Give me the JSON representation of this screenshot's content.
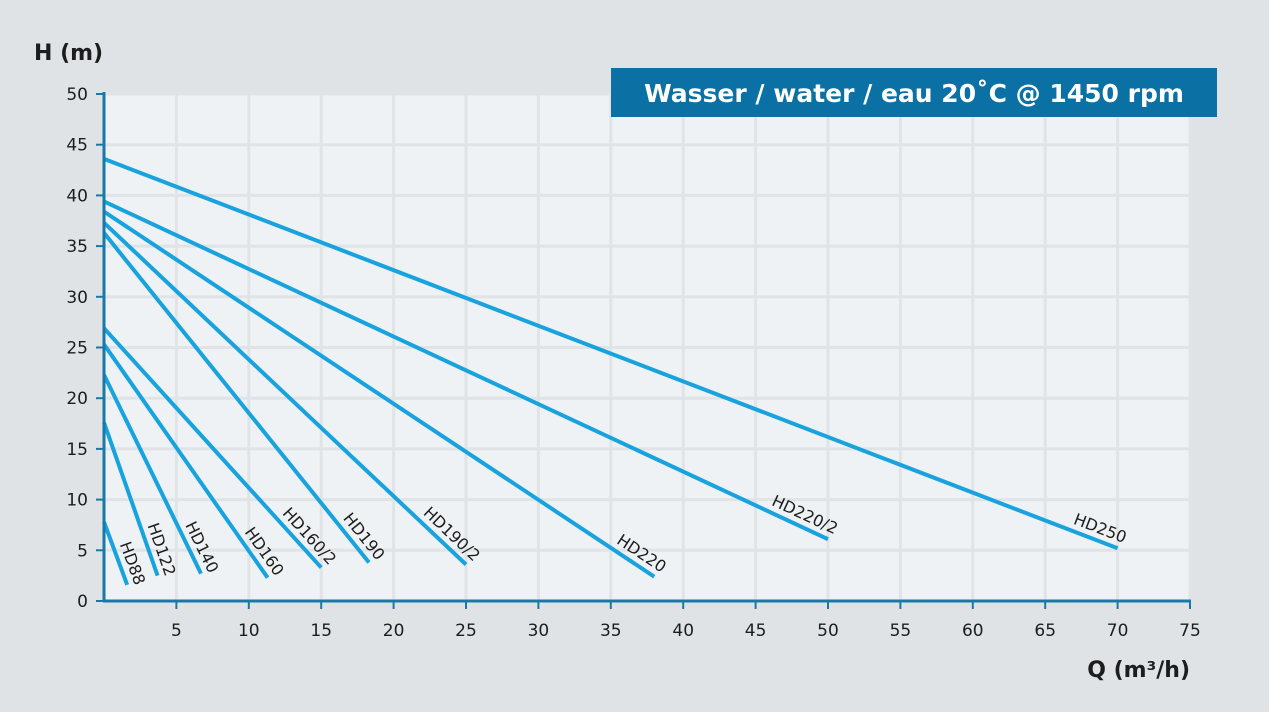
{
  "chart_data": {
    "type": "line",
    "title": "Wasser / water / eau 20˚C @ 1450 rpm",
    "xlabel": "Q (m³/h)",
    "ylabel": "H (m)",
    "xlim": [
      0,
      75
    ],
    "ylim": [
      0,
      50
    ],
    "x_ticks": [
      5,
      10,
      15,
      20,
      25,
      30,
      35,
      40,
      45,
      50,
      55,
      60,
      65,
      70,
      75
    ],
    "y_ticks": [
      0,
      5,
      10,
      15,
      20,
      25,
      30,
      35,
      40,
      45,
      50
    ],
    "grid": true,
    "series": [
      {
        "name": "HD88",
        "points": [
          [
            0,
            7.8
          ],
          [
            1.6,
            1.6
          ]
        ]
      },
      {
        "name": "HD122",
        "points": [
          [
            0,
            17.6
          ],
          [
            3.7,
            2.5
          ]
        ]
      },
      {
        "name": "HD140",
        "points": [
          [
            0,
            22.3
          ],
          [
            6.7,
            2.7
          ]
        ]
      },
      {
        "name": "HD160",
        "points": [
          [
            0,
            25.3
          ],
          [
            11.3,
            2.3
          ]
        ]
      },
      {
        "name": "HD160/2",
        "points": [
          [
            0,
            26.9
          ],
          [
            15.0,
            3.3
          ]
        ]
      },
      {
        "name": "HD190",
        "points": [
          [
            0,
            36.3
          ],
          [
            18.3,
            3.8
          ]
        ]
      },
      {
        "name": "HD190/2",
        "points": [
          [
            0,
            37.3
          ],
          [
            25.0,
            3.6
          ]
        ]
      },
      {
        "name": "HD220",
        "points": [
          [
            0,
            38.4
          ],
          [
            38.0,
            2.4
          ]
        ]
      },
      {
        "name": "HD220/2",
        "points": [
          [
            0,
            39.4
          ],
          [
            50.0,
            6.1
          ]
        ]
      },
      {
        "name": "HD250",
        "points": [
          [
            0,
            43.6
          ],
          [
            70.0,
            5.2
          ]
        ]
      }
    ]
  },
  "colors": {
    "curve": "#18a3de",
    "axis": "#1a78a8",
    "banner": "#0b71a4",
    "plot_bg": "#eff2f4",
    "grid": "#e0e4e7",
    "page_bg": "#dfe3e6"
  }
}
